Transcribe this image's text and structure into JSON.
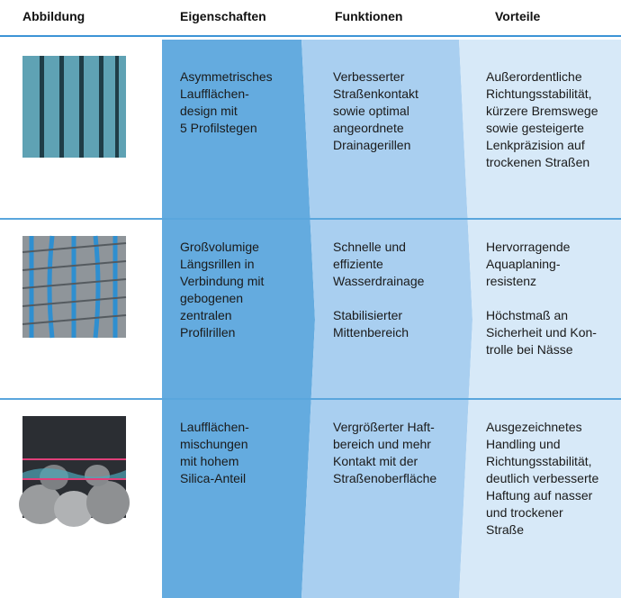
{
  "table": {
    "headers": [
      "Abbildung",
      "Eigenschaften",
      "Funktionen",
      "Vorteile"
    ],
    "rows": [
      [
        [
          [
            "Asymmetrisches",
            "Laufflächen-",
            "design mit",
            "5 Profilstegen"
          ]
        ],
        [
          [
            "Verbesserter",
            "Straßenkontakt",
            "sowie optimal",
            "angeordnete",
            "Drainagerillen"
          ]
        ],
        [
          [
            "Außerordentliche",
            "Richtungsstabilität,",
            "kürzere Bremswege",
            "sowie gesteigerte",
            "Lenkpräzision auf",
            "trockenen Straßen"
          ]
        ]
      ],
      [
        [
          [
            "Großvolumige",
            "Längsrillen in",
            "Verbindung mit",
            "gebogenen",
            "zentralen",
            "Profilrillen"
          ]
        ],
        [
          [
            "Schnelle und",
            "effiziente",
            "Wasserdrainage"
          ],
          [
            "Stabilisierter",
            "Mittenbereich"
          ]
        ],
        [
          [
            "Hervorragende",
            "Aquaplaning-",
            "resistenz"
          ],
          [
            "Höchstmaß an",
            "Sicherheit und Kon-",
            "trolle bei Nässe"
          ]
        ]
      ],
      [
        [
          [
            "Laufflächen-",
            "mischungen",
            "mit hohem",
            "Silica-Anteil"
          ]
        ],
        [
          [
            "Vergrößerter Haft-",
            "bereich und mehr",
            "Kontakt mit der",
            "Straßenoberfläche"
          ]
        ],
        [
          [
            "Ausgezeichnetes",
            "Handling und",
            "Richtungsstabilität,",
            "deutlich verbesserte",
            "Haftung auf nasser",
            "und trockener",
            "Straße"
          ]
        ]
      ]
    ]
  }
}
